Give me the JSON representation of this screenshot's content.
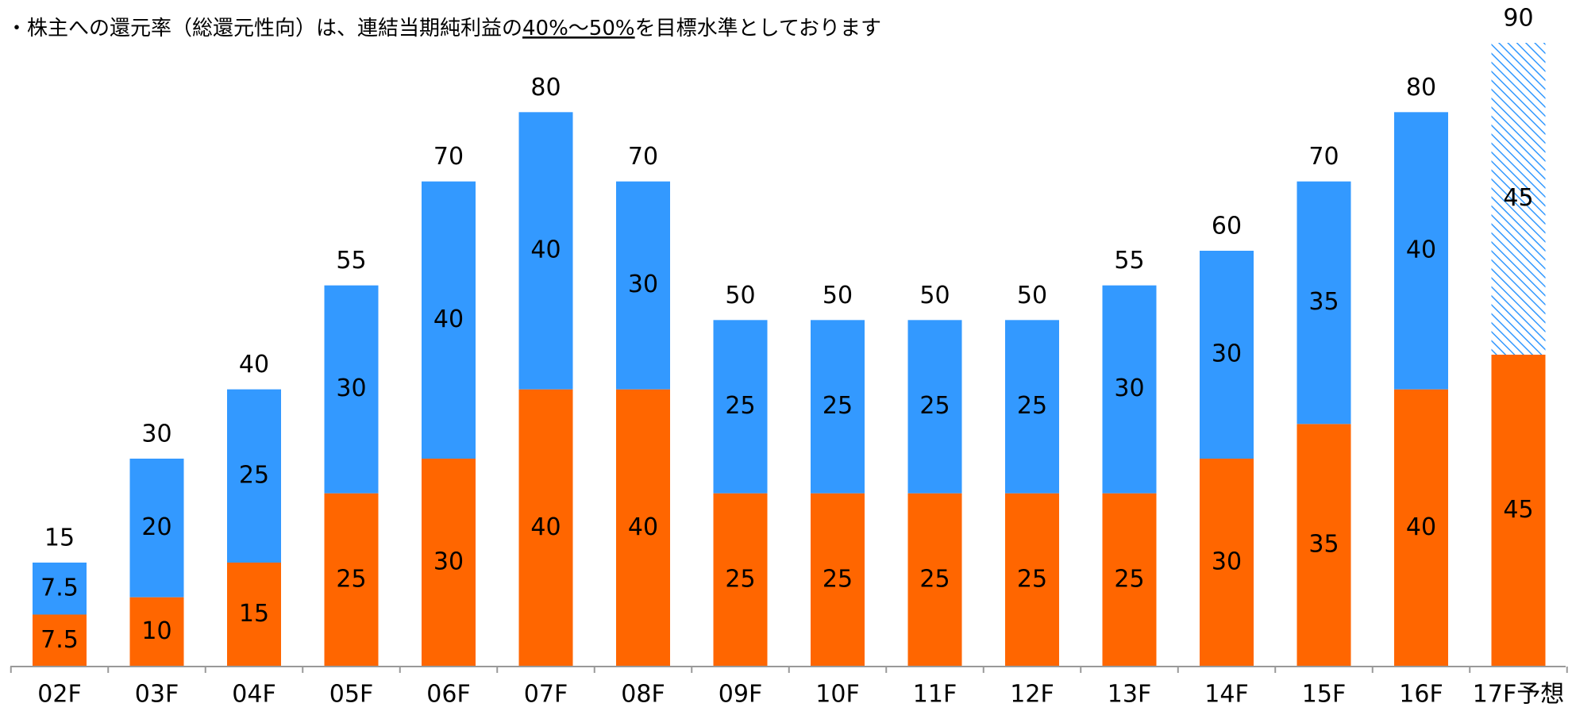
{
  "chart_data": {
    "type": "stacked_bar",
    "title_prefix": "・株主への還元率（総還元性向）は、連結当期純利益の",
    "title_emphasis": "40%～50%",
    "title_suffix": "を目標水準としております",
    "categories": [
      "02F",
      "03F",
      "04F",
      "05F",
      "06F",
      "07F",
      "08F",
      "09F",
      "10F",
      "11F",
      "12F",
      "13F",
      "14F",
      "15F",
      "16F",
      "17F予想"
    ],
    "series": [
      {
        "color": "#ff6600",
        "values": [
          7.5,
          10,
          15,
          25,
          30,
          40,
          40,
          25,
          25,
          25,
          25,
          25,
          30,
          35,
          40,
          45
        ]
      },
      {
        "color": "#3399ff",
        "values": [
          7.5,
          20,
          25,
          30,
          40,
          40,
          30,
          25,
          25,
          25,
          25,
          30,
          30,
          35,
          40,
          45
        ],
        "hatched": [
          false,
          false,
          false,
          false,
          false,
          false,
          false,
          false,
          false,
          false,
          false,
          false,
          false,
          false,
          false,
          true
        ]
      }
    ],
    "totals": [
      15,
      30,
      40,
      55,
      70,
      80,
      70,
      50,
      50,
      50,
      50,
      55,
      60,
      70,
      80,
      90
    ],
    "ylim": [
      0,
      90
    ]
  }
}
